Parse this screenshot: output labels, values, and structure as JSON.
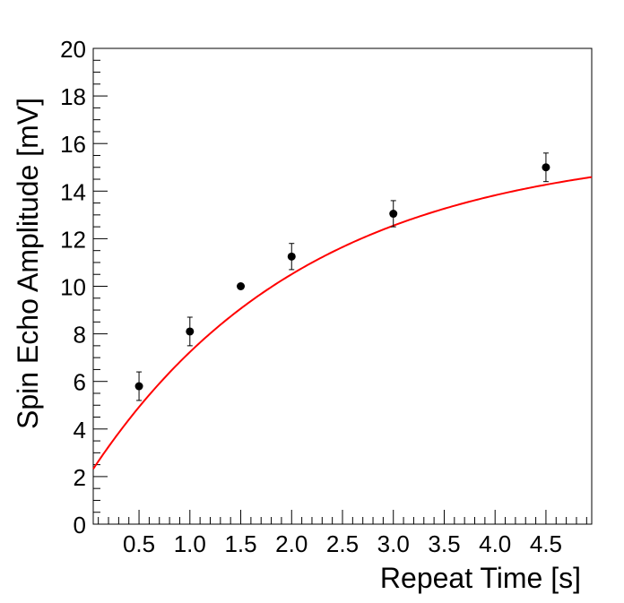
{
  "chart_data": {
    "type": "scatter",
    "xlabel": "Repeat Time [s]",
    "ylabel": "Spin Echo Amplitude [mV]",
    "xlim": [
      0.05,
      4.95
    ],
    "ylim": [
      0,
      20
    ],
    "x_ticks": [
      "0.5",
      "1.0",
      "1.5",
      "2.0",
      "2.5",
      "3.0",
      "3.5",
      "4.0",
      "4.5"
    ],
    "y_ticks": [
      "0",
      "2",
      "4",
      "6",
      "8",
      "10",
      "12",
      "14",
      "16",
      "18",
      "20"
    ],
    "grid": false,
    "series": [
      {
        "kind": "points-with-error-bars",
        "color": "#000000",
        "points": [
          {
            "x": 0.5,
            "y": 5.8,
            "err": 0.6
          },
          {
            "x": 1.0,
            "y": 8.1,
            "err": 0.6
          },
          {
            "x": 1.5,
            "y": 10.0,
            "err": 0.0
          },
          {
            "x": 2.0,
            "y": 11.25,
            "err": 0.55
          },
          {
            "x": 3.0,
            "y": 13.05,
            "err": 0.55
          },
          {
            "x": 4.5,
            "y": 15.0,
            "err": 0.6
          }
        ]
      },
      {
        "kind": "fit-curve",
        "color": "#ff0000",
        "model": "y = A*(1 - exp(-x/T1)) + C",
        "params": {
          "A": 13.95,
          "T1": 2.126,
          "C": 2.0
        }
      }
    ]
  }
}
